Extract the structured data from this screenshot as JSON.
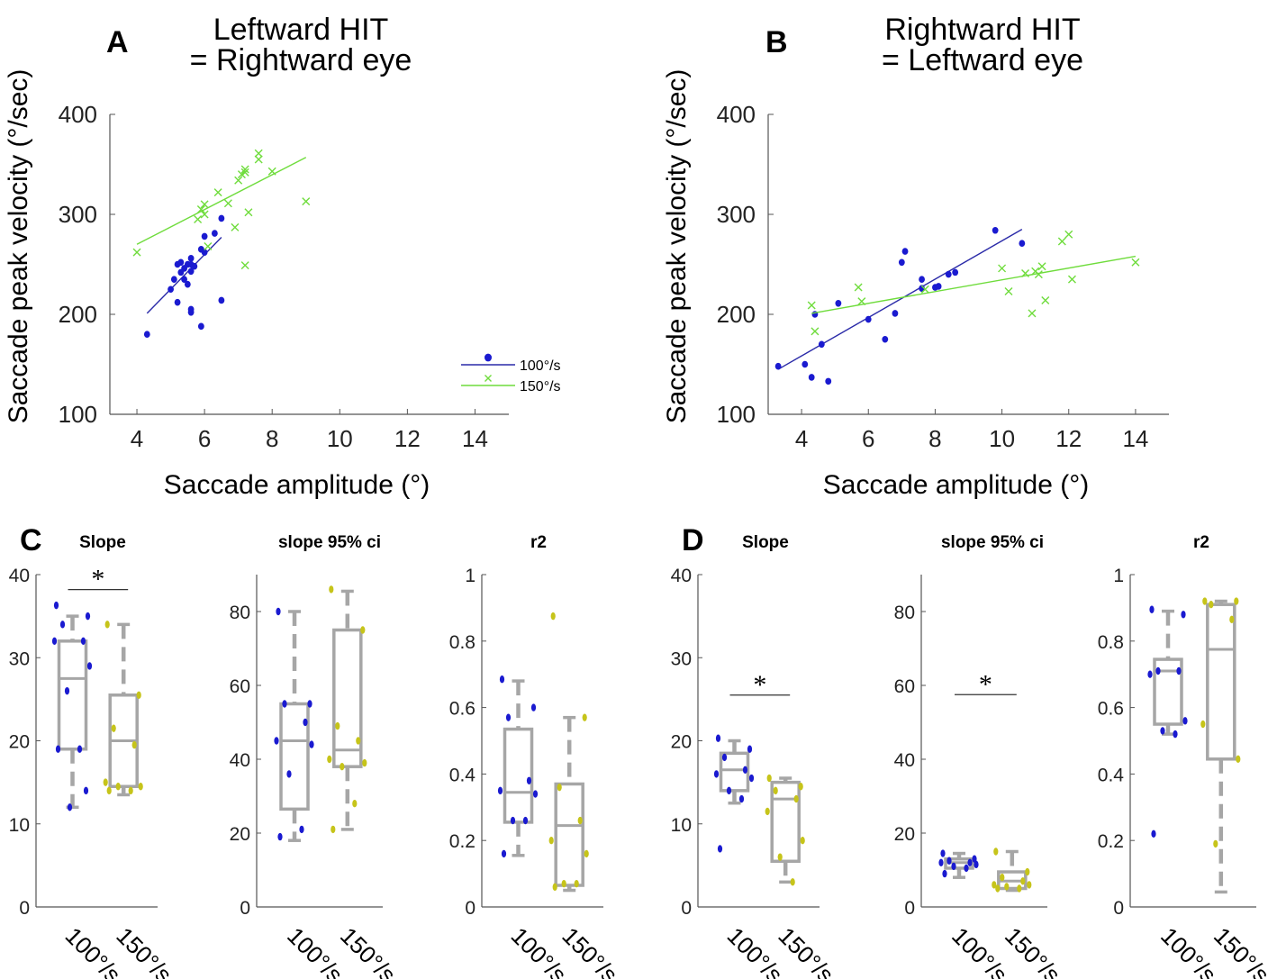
{
  "colors": {
    "blue": "#1a1ad0",
    "blue_line": "#2a2aa8",
    "green": "#6fdc3c",
    "yellow": "#c6c41a",
    "box": "#a6a6a6"
  },
  "chart_data": [
    {
      "id": "A",
      "type": "scatter",
      "letter": "A",
      "title_lines": [
        "Leftward HIT",
        "= Rightward eye"
      ],
      "xlabel": "Saccade amplitude (°)",
      "ylabel": "Saccade peak velocity (°/sec)",
      "xlim": [
        3.2,
        15.0
      ],
      "ylim": [
        100,
        400
      ],
      "xticks": [
        4,
        6,
        8,
        10,
        12,
        14
      ],
      "yticks": [
        100,
        200,
        300,
        400
      ],
      "legend": [
        {
          "label": "100°/s",
          "marker": "dot"
        },
        {
          "label": "150°/s",
          "marker": "x"
        }
      ],
      "series": [
        {
          "name": "100°/s",
          "marker": "dot",
          "x": [
            4.3,
            5.0,
            5.1,
            5.2,
            5.2,
            5.3,
            5.3,
            5.4,
            5.4,
            5.5,
            5.5,
            5.6,
            5.6,
            5.6,
            5.6,
            5.6,
            5.7,
            5.9,
            5.9,
            6.0,
            6.0,
            6.3,
            6.5,
            6.5
          ],
          "y": [
            180,
            225,
            235,
            250,
            212,
            242,
            252,
            235,
            246,
            230,
            250,
            256,
            250,
            243,
            205,
            202,
            248,
            188,
            265,
            262,
            278,
            281,
            296,
            214
          ],
          "fit": {
            "x": [
              4.3,
              6.5
            ],
            "y": [
              201,
              277
            ]
          }
        },
        {
          "name": "150°/s",
          "marker": "x",
          "x": [
            4.0,
            5.8,
            5.9,
            6.0,
            6.0,
            6.1,
            6.4,
            6.7,
            6.9,
            7.0,
            7.1,
            7.2,
            7.2,
            7.3,
            7.6,
            7.6,
            8.0,
            9.0,
            7.2
          ],
          "y": [
            262,
            295,
            305,
            310,
            300,
            268,
            322,
            311,
            287,
            334,
            340,
            342,
            345,
            302,
            355,
            361,
            343,
            313,
            249
          ],
          "fit": {
            "x": [
              4.0,
              9.0
            ],
            "y": [
              270,
              357
            ]
          }
        }
      ]
    },
    {
      "id": "B",
      "type": "scatter",
      "letter": "B",
      "title_lines": [
        "Rightward HIT",
        "= Leftward eye"
      ],
      "xlabel": "Saccade amplitude (°)",
      "ylabel": "Saccade peak velocity (°/sec)",
      "xlim": [
        3.0,
        15.0
      ],
      "ylim": [
        100,
        400
      ],
      "xticks": [
        4,
        6,
        8,
        10,
        12,
        14
      ],
      "yticks": [
        100,
        200,
        300,
        400
      ],
      "series": [
        {
          "name": "100°/s",
          "marker": "dot",
          "x": [
            3.3,
            4.1,
            4.3,
            4.4,
            4.6,
            4.8,
            5.1,
            6.0,
            6.5,
            6.8,
            7.0,
            7.1,
            7.6,
            7.6,
            8.0,
            8.1,
            8.4,
            8.6,
            9.8,
            10.6
          ],
          "y": [
            148,
            150,
            137,
            200,
            170,
            133,
            211,
            195,
            175,
            201,
            252,
            263,
            226,
            235,
            227,
            228,
            240,
            242,
            284,
            271
          ],
          "fit": {
            "x": [
              3.3,
              10.6
            ],
            "y": [
              145,
              285
            ]
          }
        },
        {
          "name": "150°/s",
          "marker": "x",
          "x": [
            4.3,
            4.4,
            5.7,
            5.8,
            7.7,
            10.0,
            10.2,
            10.7,
            10.9,
            11.0,
            11.1,
            11.2,
            11.3,
            11.8,
            12.0,
            12.1,
            14.0
          ],
          "y": [
            209,
            183,
            227,
            213,
            225,
            246,
            223,
            241,
            201,
            243,
            240,
            248,
            214,
            273,
            280,
            235,
            252
          ],
          "fit": {
            "x": [
              4.3,
              14.0
            ],
            "y": [
              201,
              258
            ]
          }
        }
      ]
    },
    {
      "id": "C1",
      "type": "box",
      "letter": "C",
      "title": "Slope",
      "categories": [
        "100°/s",
        "150°/s"
      ],
      "ylim": [
        0,
        40
      ],
      "yticks": [
        0,
        10,
        20,
        30,
        40
      ],
      "boxes": [
        {
          "min": 12,
          "q1": 19,
          "median": 27.5,
          "q3": 32,
          "max": 35,
          "points": [
            36.3,
            35,
            34,
            32,
            32,
            29,
            26,
            19,
            19,
            14,
            12
          ]
        },
        {
          "min": 13.5,
          "q1": 14.5,
          "median": 20,
          "q3": 25.5,
          "max": 34,
          "points": [
            34,
            25.5,
            21.5,
            19.5,
            15,
            14.5,
            14.5,
            14,
            14
          ]
        }
      ],
      "significance": {
        "label": "*",
        "y": 38.2
      }
    },
    {
      "id": "C2",
      "type": "box",
      "title": "slope 95% ci",
      "categories": [
        "100°/s",
        "150°/s"
      ],
      "ylim": [
        0,
        90
      ],
      "yticks": [
        0,
        20,
        40,
        60,
        80
      ],
      "boxes": [
        {
          "min": 18,
          "q1": 26.5,
          "median": 45,
          "q3": 55,
          "max": 80,
          "points": [
            80,
            55,
            55,
            50,
            45,
            44,
            36,
            21,
            19
          ]
        },
        {
          "min": 21,
          "q1": 38,
          "median": 42.5,
          "q3": 75,
          "max": 85.5,
          "points": [
            86,
            75,
            49,
            45,
            40,
            39,
            38,
            28,
            21
          ]
        }
      ]
    },
    {
      "id": "C3",
      "type": "box",
      "title": "r2",
      "categories": [
        "100°/s",
        "150°/s"
      ],
      "ylim": [
        0,
        1
      ],
      "yticks": [
        0,
        0.2,
        0.4,
        0.6,
        0.8,
        1
      ],
      "ytick_labels": [
        "0",
        "0.2",
        "0.4",
        "0.6",
        "0.8",
        "1"
      ],
      "boxes": [
        {
          "min": 0.155,
          "q1": 0.255,
          "median": 0.345,
          "q3": 0.535,
          "max": 0.68,
          "points": [
            0.685,
            0.6,
            0.57,
            0.38,
            0.35,
            0.34,
            0.26,
            0.26,
            0.16
          ]
        },
        {
          "min": 0.05,
          "q1": 0.065,
          "median": 0.245,
          "q3": 0.37,
          "max": 0.57,
          "points": [
            0.875,
            0.57,
            0.36,
            0.26,
            0.2,
            0.16,
            0.07,
            0.07,
            0.06
          ]
        }
      ]
    },
    {
      "id": "D1",
      "type": "box",
      "letter": "D",
      "title": "Slope",
      "categories": [
        "100°/s",
        "150°/s"
      ],
      "ylim": [
        0,
        40
      ],
      "yticks": [
        0,
        10,
        20,
        30,
        40
      ],
      "boxes": [
        {
          "min": 12.5,
          "q1": 14,
          "median": 16.5,
          "q3": 18.5,
          "max": 20,
          "points": [
            20.3,
            19,
            18,
            16.5,
            16,
            15.5,
            14,
            13,
            7
          ]
        },
        {
          "min": 3,
          "q1": 5.5,
          "median": 13,
          "q3": 15,
          "max": 15.5,
          "points": [
            15.5,
            14.5,
            14,
            13,
            11.5,
            8,
            6,
            3
          ]
        }
      ],
      "significance": {
        "label": "*",
        "y": 25.5
      }
    },
    {
      "id": "D2",
      "type": "box",
      "title": "slope 95% ci",
      "categories": [
        "100°/s",
        "150°/s"
      ],
      "ylim": [
        0,
        90
      ],
      "yticks": [
        0,
        20,
        40,
        60,
        80
      ],
      "boxes": [
        {
          "min": 8,
          "q1": 10.5,
          "median": 12,
          "q3": 13,
          "max": 14.5,
          "points": [
            14.5,
            13,
            12.5,
            12,
            12,
            11.5,
            11,
            10.5,
            9
          ]
        },
        {
          "min": 4.5,
          "q1": 5,
          "median": 7,
          "q3": 9.5,
          "max": 15,
          "points": [
            15,
            9.5,
            8,
            7,
            6,
            6,
            5.5,
            5,
            5
          ]
        }
      ],
      "significance": {
        "label": "*",
        "y": 57.5
      }
    },
    {
      "id": "D3",
      "type": "box",
      "title": "r2",
      "categories": [
        "100°/s",
        "150°/s"
      ],
      "ylim": [
        0,
        1
      ],
      "yticks": [
        0,
        0.2,
        0.4,
        0.6,
        0.8,
        1
      ],
      "ytick_labels": [
        "0",
        "0.2",
        "0.4",
        "0.6",
        "0.8",
        "1"
      ],
      "boxes": [
        {
          "min": 0.52,
          "q1": 0.55,
          "median": 0.71,
          "q3": 0.745,
          "max": 0.89,
          "points": [
            0.895,
            0.88,
            0.71,
            0.71,
            0.7,
            0.56,
            0.53,
            0.52,
            0.22
          ]
        },
        {
          "min": 0.045,
          "q1": 0.445,
          "median": 0.775,
          "q3": 0.91,
          "max": 0.92,
          "points": [
            0.92,
            0.92,
            0.91,
            0.865,
            0.55,
            0.445,
            0.19
          ]
        }
      ]
    }
  ]
}
